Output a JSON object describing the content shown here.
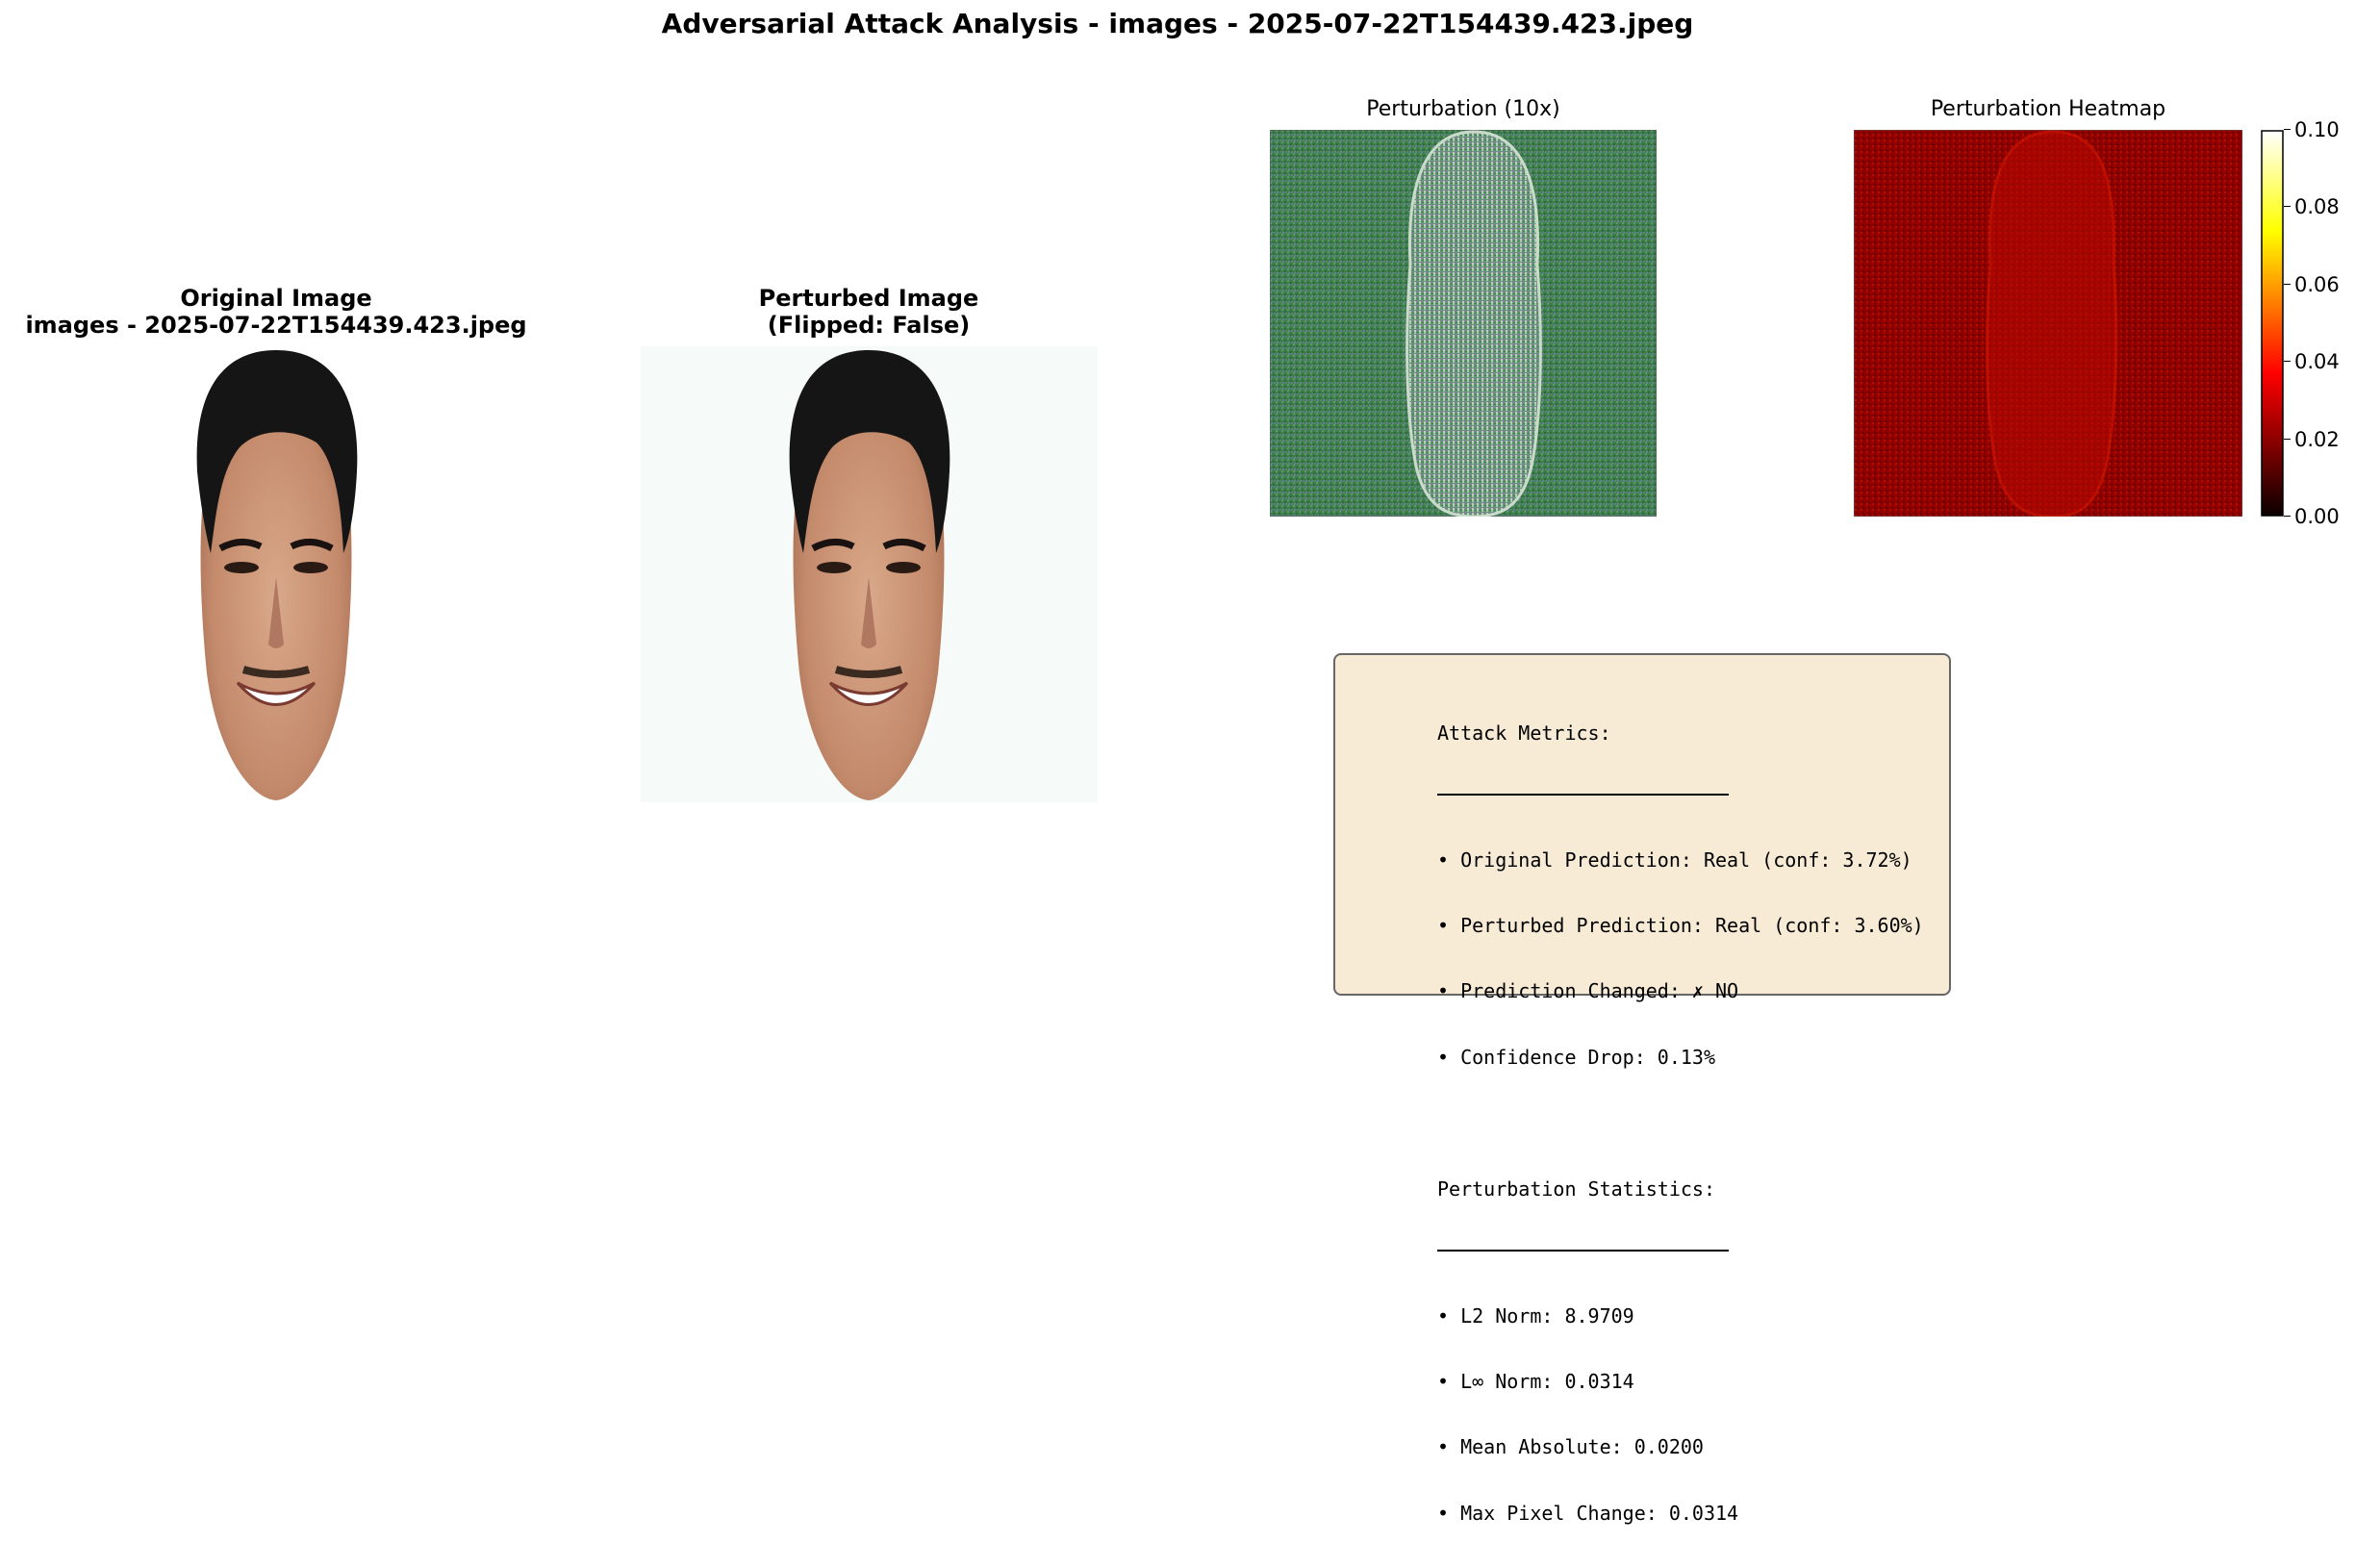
{
  "suptitle": "Adversarial Attack Analysis - images - 2025-07-22T154439.423.jpeg",
  "panels": {
    "original": {
      "title_line1": "Original Image",
      "title_line2": "images - 2025-07-22T154439.423.jpeg"
    },
    "perturbed": {
      "title_line1": "Perturbed Image",
      "title_line2": "(Flipped: False)"
    },
    "perturbation": {
      "title": "Perturbation (10x)"
    },
    "heatmap": {
      "title": "Perturbation Heatmap"
    }
  },
  "chart_data": {
    "type": "heatmap",
    "title": "Perturbation Heatmap",
    "colormap": "hot",
    "colorbar": {
      "min": 0.0,
      "max": 0.1,
      "ticks": [
        "0.00",
        "0.02",
        "0.04",
        "0.06",
        "0.08",
        "0.10"
      ]
    }
  },
  "metrics": {
    "attack_header": "Attack Metrics:",
    "attack_items": [
      "• Original Prediction: Real (conf: 3.72%)",
      "• Perturbed Prediction: Real (conf: 3.60%)",
      "• Prediction Changed: ✗ NO",
      "• Confidence Drop: 0.13%"
    ],
    "stats_header": "Perturbation Statistics:",
    "stats_items": [
      "• L2 Norm: 8.9709",
      "• L∞ Norm: 0.0314",
      "• Mean Absolute: 0.0200",
      "• Max Pixel Change: 0.0314"
    ]
  },
  "colors": {
    "metrics_bg": "#f7ebd5",
    "perturbation_base": "#3a7a4a",
    "heatmap_base": "#8a0000"
  }
}
